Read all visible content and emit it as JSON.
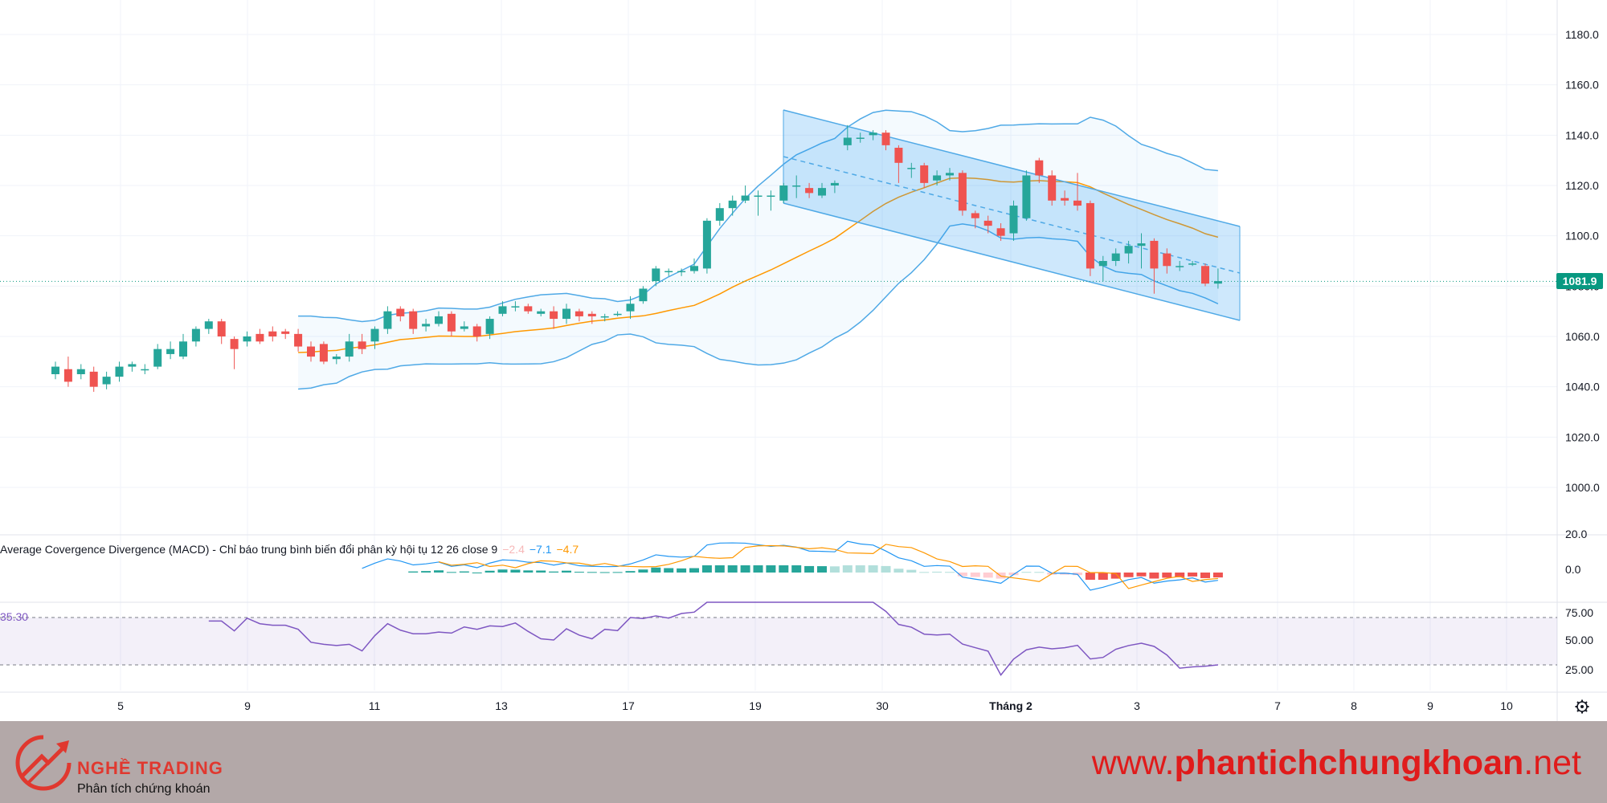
{
  "chart_data": {
    "type": "candlestick",
    "price_axis": {
      "ticks": [
        "1180.0",
        "1160.0",
        "1140.0",
        "1120.0",
        "1100.0",
        "1080.0",
        "1060.0",
        "1040.0",
        "1020.0",
        "1000.0"
      ],
      "range": [
        988,
        1192
      ]
    },
    "time_axis": {
      "ticks": [
        "5",
        "9",
        "11",
        "13",
        "17",
        "19",
        "30",
        "Tháng 2",
        "3",
        "7",
        "8",
        "9",
        "10"
      ]
    },
    "last_price": "1081.9",
    "candles": [
      [
        1045,
        1048,
        1043,
        1050
      ],
      [
        1047,
        1042,
        1040,
        1052
      ],
      [
        1045,
        1047,
        1043,
        1049
      ],
      [
        1046,
        1040,
        1038,
        1048
      ],
      [
        1041,
        1044,
        1039,
        1046
      ],
      [
        1044,
        1048,
        1042,
        1050
      ],
      [
        1048,
        1049,
        1046,
        1050
      ],
      [
        1047,
        1047,
        1045,
        1049
      ],
      [
        1048,
        1055,
        1047,
        1057
      ],
      [
        1053,
        1055,
        1051,
        1058
      ],
      [
        1052,
        1058,
        1051,
        1061
      ],
      [
        1058,
        1063,
        1056,
        1064
      ],
      [
        1063,
        1066,
        1061,
        1067
      ],
      [
        1066,
        1060,
        1057,
        1067
      ],
      [
        1059,
        1055,
        1047,
        1060
      ],
      [
        1058,
        1060,
        1056,
        1062
      ],
      [
        1061,
        1058,
        1057,
        1063
      ],
      [
        1062,
        1060,
        1058,
        1064
      ],
      [
        1062,
        1061,
        1059,
        1063
      ],
      [
        1061,
        1056,
        1054,
        1063
      ],
      [
        1056,
        1052,
        1050,
        1058
      ],
      [
        1057,
        1050,
        1049,
        1058
      ],
      [
        1051,
        1052,
        1049,
        1053
      ],
      [
        1052,
        1058,
        1050,
        1061
      ],
      [
        1058,
        1055,
        1053,
        1061
      ],
      [
        1058,
        1063,
        1055,
        1064
      ],
      [
        1063,
        1070,
        1061,
        1072
      ],
      [
        1071,
        1068,
        1066,
        1072
      ],
      [
        1070,
        1063,
        1061,
        1071
      ],
      [
        1064,
        1065,
        1062,
        1067
      ],
      [
        1065,
        1068,
        1064,
        1070
      ],
      [
        1069,
        1062,
        1060,
        1070
      ],
      [
        1063,
        1064,
        1062,
        1066
      ],
      [
        1064,
        1060,
        1058,
        1065
      ],
      [
        1061,
        1067,
        1059,
        1068
      ],
      [
        1069,
        1072,
        1068,
        1074
      ],
      [
        1072,
        1072,
        1070,
        1074
      ],
      [
        1072,
        1070,
        1069,
        1073
      ],
      [
        1069,
        1070,
        1068,
        1071
      ],
      [
        1070,
        1067,
        1063,
        1072
      ],
      [
        1067,
        1071,
        1065,
        1073
      ],
      [
        1070,
        1068,
        1066,
        1071
      ],
      [
        1069,
        1068,
        1065,
        1070
      ],
      [
        1068,
        1068,
        1066,
        1069
      ],
      [
        1069,
        1069,
        1068,
        1070
      ],
      [
        1070,
        1073,
        1067,
        1076
      ],
      [
        1074,
        1079,
        1073,
        1080
      ],
      [
        1082,
        1087,
        1080,
        1088
      ],
      [
        1086,
        1086,
        1084,
        1087
      ],
      [
        1086,
        1086,
        1084,
        1087
      ],
      [
        1086,
        1088,
        1085,
        1091
      ],
      [
        1087,
        1106,
        1085,
        1107
      ],
      [
        1106,
        1111,
        1104,
        1113
      ],
      [
        1111,
        1114,
        1108,
        1116
      ],
      [
        1114,
        1116,
        1113,
        1120
      ],
      [
        1116,
        1116,
        1108,
        1118
      ],
      [
        1116,
        1116,
        1110,
        1118
      ],
      [
        1114,
        1120,
        1113,
        1121
      ],
      [
        1120,
        1120,
        1115,
        1124
      ],
      [
        1119,
        1117,
        1115,
        1121
      ],
      [
        1116,
        1119,
        1115,
        1121
      ],
      [
        1120,
        1121,
        1117,
        1122
      ],
      [
        1136,
        1139,
        1134,
        1144
      ],
      [
        1139,
        1139,
        1137,
        1141
      ],
      [
        1140,
        1141,
        1138,
        1142
      ],
      [
        1141,
        1136,
        1134,
        1142
      ],
      [
        1135,
        1129,
        1121,
        1136
      ],
      [
        1127,
        1127,
        1123,
        1129
      ],
      [
        1128,
        1121,
        1119,
        1129
      ],
      [
        1122,
        1124,
        1120,
        1126
      ],
      [
        1124,
        1125,
        1122,
        1127
      ],
      [
        1125,
        1110,
        1108,
        1126
      ],
      [
        1109,
        1107,
        1103,
        1110
      ],
      [
        1106,
        1104,
        1101,
        1108
      ],
      [
        1103,
        1100,
        1098,
        1105
      ],
      [
        1101,
        1112,
        1098,
        1114
      ],
      [
        1107,
        1124,
        1106,
        1126
      ],
      [
        1130,
        1124,
        1121,
        1131
      ],
      [
        1124,
        1114,
        1112,
        1126
      ],
      [
        1115,
        1114,
        1112,
        1118
      ],
      [
        1114,
        1112,
        1110,
        1125
      ],
      [
        1113,
        1087,
        1084,
        1114
      ],
      [
        1088,
        1090,
        1082,
        1092
      ],
      [
        1090,
        1093,
        1088,
        1095
      ],
      [
        1093,
        1096,
        1089,
        1098
      ],
      [
        1096,
        1097,
        1087,
        1101
      ],
      [
        1098,
        1087,
        1077,
        1099
      ],
      [
        1093,
        1088,
        1085,
        1095
      ],
      [
        1088,
        1088,
        1086,
        1090
      ],
      [
        1089,
        1089,
        1088,
        1090
      ],
      [
        1088,
        1081,
        1080,
        1089
      ],
      [
        1081,
        1082,
        1079,
        1087
      ]
    ],
    "macd": {
      "legend": "Average Covergence Divergence (MACD) - Chỉ báo trung bình biến đổi phân kỳ hội tụ 12 26 close 9",
      "values": [
        "−2.4",
        "−7.1",
        "−4.7"
      ],
      "axis_ticks": [
        "20.0",
        "0.0"
      ]
    },
    "rsi": {
      "value": "35.30",
      "axis_ticks": [
        "75.00",
        "50.00",
        "25.00"
      ]
    }
  },
  "footer": {
    "brand_name": "NGHỀ TRADING",
    "brand_tagline": "Phân tích chứng khoán",
    "website_prefix": "www.",
    "website_bold": "phantichchungkhoan",
    "website_suffix": ".net"
  },
  "colors": {
    "up": "#26a69a",
    "down": "#ef5350",
    "bb": "#2196f3",
    "ma": "#ff9800",
    "rsi": "#7e57c2",
    "brand": "#e0382f"
  },
  "icons": {
    "settings": "gear-icon",
    "logo": "trend-arrow-logo-icon"
  }
}
